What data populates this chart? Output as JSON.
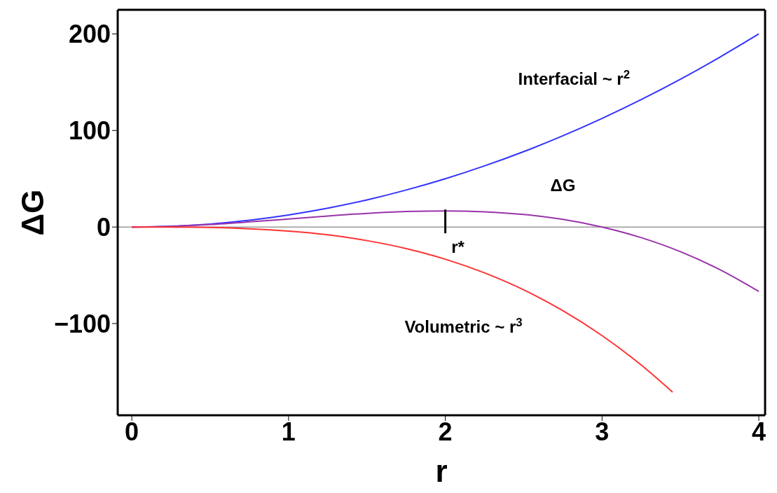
{
  "chart_data": {
    "type": "line",
    "xlabel": "r",
    "ylabel": "ΔG",
    "xlim": [
      -0.09,
      4.04
    ],
    "xticks": [
      0,
      1,
      2,
      3,
      4
    ],
    "ylim": [
      -195,
      225
    ],
    "yticks": [
      -100,
      0,
      100,
      200
    ],
    "marker": "none",
    "line_style": "solid",
    "ref_lines": [
      {
        "axis": "y",
        "value": 0,
        "color": "#999999"
      }
    ],
    "annotations": [
      {
        "text": "r*",
        "x": 2,
        "y": 16.7
      }
    ],
    "series": [
      {
        "name": "Interfacial ~ r$^{2}$",
        "color": "#3333ff",
        "x": [
          0,
          0.25,
          0.5,
          0.75,
          1,
          1.25,
          1.5,
          1.75,
          2,
          2.25,
          2.5,
          2.75,
          3,
          3.25,
          3.5,
          3.75,
          4
        ],
        "values": [
          0,
          0.8,
          3.1,
          7,
          12.5,
          19.5,
          28.1,
          38.3,
          50,
          63.3,
          78.1,
          94.5,
          112.5,
          132,
          153.1,
          175.8,
          200
        ]
      },
      {
        "name": "ΔG",
        "color": "#9933aa",
        "x": [
          0,
          0.25,
          0.5,
          0.75,
          1,
          1.25,
          1.5,
          1.75,
          2,
          2.25,
          2.5,
          2.75,
          3,
          3.25,
          3.5,
          3.75,
          4
        ],
        "values": [
          0,
          0.7,
          2.6,
          5.3,
          8.3,
          11.4,
          14.1,
          16,
          16.7,
          15.8,
          13,
          7.9,
          0,
          -11,
          -25.5,
          -44,
          -66.7
        ]
      },
      {
        "name": "Volumetric ~ r$^{3}$",
        "color": "#ff3333",
        "x": [
          0,
          0.25,
          0.5,
          0.75,
          1,
          1.25,
          1.5,
          1.75,
          2,
          2.25,
          2.5,
          2.75,
          3,
          3.25,
          3.45
        ],
        "values": [
          0,
          -0.1,
          -0.5,
          -1.8,
          -4.2,
          -8.1,
          -14.1,
          -22.3,
          -33.3,
          -47.5,
          -65.1,
          -86.7,
          -112.5,
          -143,
          -171.1
        ]
      }
    ]
  }
}
